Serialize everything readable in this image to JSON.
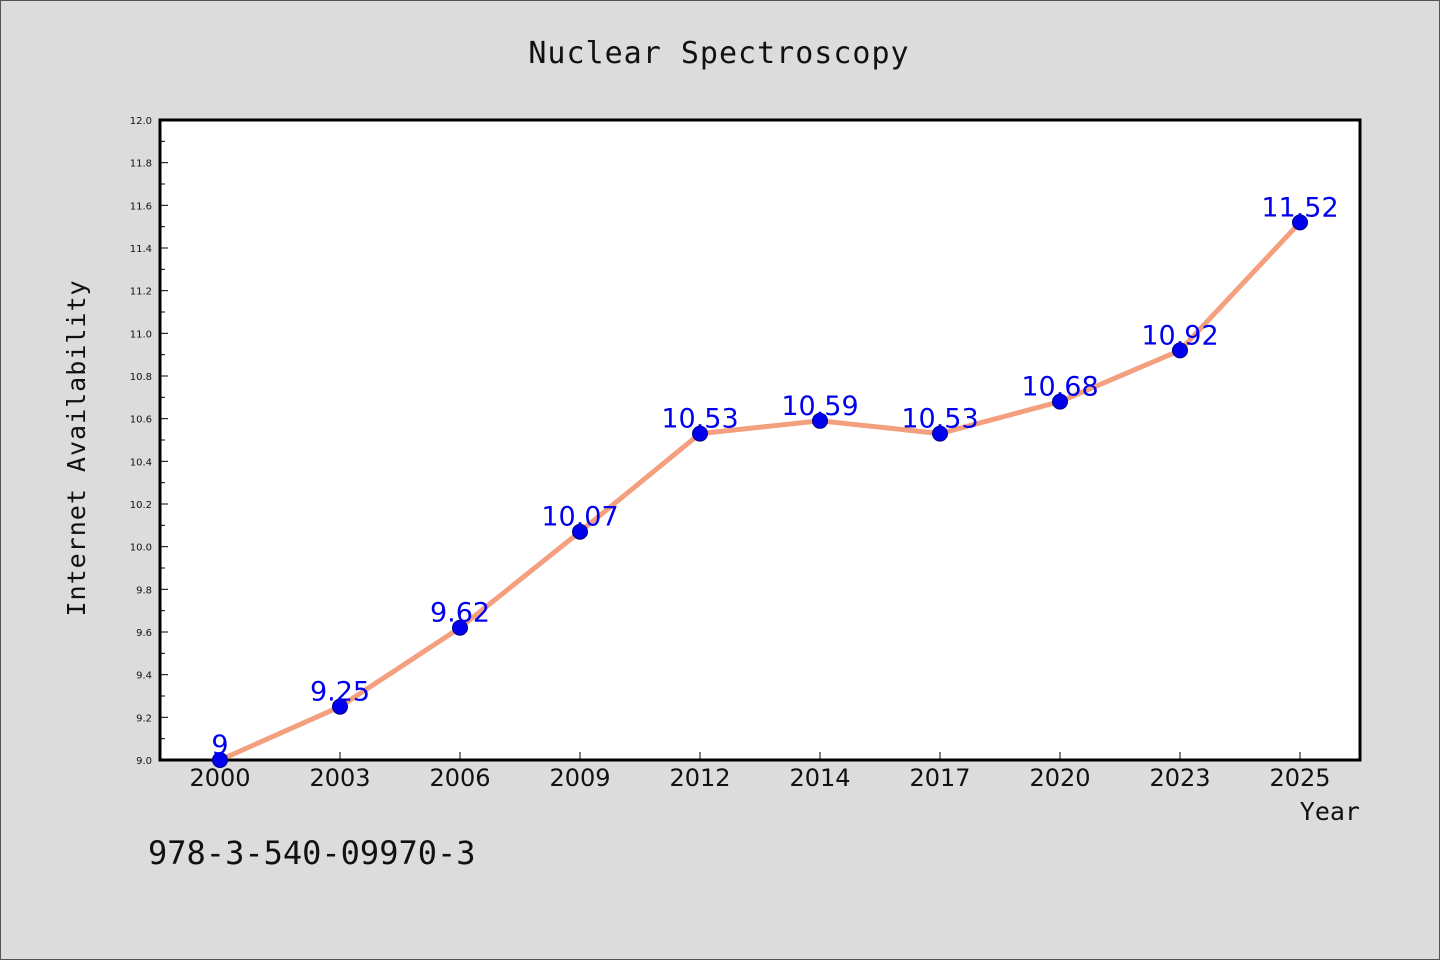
{
  "chart_data": {
    "type": "line",
    "title": "Nuclear Spectroscopy",
    "xlabel": "Year",
    "ylabel": "Internet Availability",
    "categories": [
      "2000",
      "2003",
      "2006",
      "2009",
      "2012",
      "2014",
      "2017",
      "2020",
      "2023",
      "2025"
    ],
    "series": [
      {
        "values": [
          9,
          9.25,
          9.62,
          10.07,
          10.53,
          10.59,
          10.53,
          10.68,
          10.92,
          11.52
        ],
        "data_labels": [
          "9",
          "9.25",
          "9.62",
          "10.07",
          "10.53",
          "10.59",
          "10.53",
          "10.68",
          "10.92",
          "11.52"
        ]
      }
    ],
    "ylim": [
      9.0,
      12.0
    ],
    "yticks": [
      "9.0",
      "9.2",
      "9.4",
      "9.6",
      "9.8",
      "10.0",
      "10.2",
      "10.4",
      "10.6",
      "10.8",
      "11.0",
      "11.2",
      "11.4",
      "11.6",
      "11.8",
      "12.0"
    ],
    "grid": false,
    "colors": {
      "line": "#f4a07e",
      "marker": "#0000ee",
      "data_label": "#0000ee",
      "axis": "#000000",
      "background": "#dcdcdc",
      "plot_background": "#ffffff"
    }
  },
  "footer": {
    "isbn": "978-3-540-09970-3"
  }
}
